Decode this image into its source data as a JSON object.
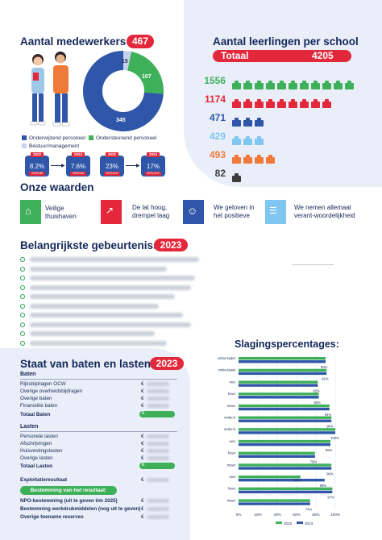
{
  "employees": {
    "title": "Aantal medewerkers",
    "total": "467",
    "donut": [
      {
        "label": "Onderwijzend personeel",
        "value": 345,
        "color": "#2f56a8"
      },
      {
        "label": "Ondersteunend personeel",
        "value": 107,
        "color": "#3fb05a"
      },
      {
        "label": "Bestuur/management",
        "value": 15,
        "color": "#c7d3ec"
      }
    ],
    "donut_labels": {
      "teaching": "345",
      "support": "107",
      "management": "15"
    },
    "legend": {
      "teaching": "Onderwijzend personeel",
      "support": "Ondersteunend personeel",
      "management": "Bestuur/management"
    },
    "cards": [
      {
        "year": "2022",
        "value": "8.2%",
        "tag": "VERZUIM"
      },
      {
        "year": "2023",
        "value": "7.6%",
        "tag": "VERZUIM"
      },
      {
        "year": "2022",
        "value": "23%",
        "tag": "VERLOOP"
      },
      {
        "year": "2023",
        "value": "17%",
        "tag": "VERLOOP"
      }
    ]
  },
  "students": {
    "title": "Aantal leerlingen per school",
    "total_label": "Totaal",
    "total_value": "4205",
    "rows": [
      {
        "value": "1556",
        "color": "#3fb05a",
        "icons": 11
      },
      {
        "value": "1174",
        "color": "#e3283c",
        "icons": 9
      },
      {
        "value": "471",
        "color": "#2f56a8",
        "icons": 3
      },
      {
        "value": "429",
        "color": "#7fc6f0",
        "icons": 3
      },
      {
        "value": "493",
        "color": "#f07a3a",
        "icons": 4
      },
      {
        "value": "82",
        "color": "#3c3c3c",
        "icons": 1
      }
    ]
  },
  "values": {
    "title": "Onze waarden",
    "items": [
      {
        "label": "Veilige thuishaven",
        "color": "#3fb05a",
        "icon": "house-icon"
      },
      {
        "label": "De lat hoog, drempel laag",
        "color": "#e3283c",
        "icon": "chart-growth-icon"
      },
      {
        "label": "We geloven in het positieve",
        "color": "#2f56a8",
        "icon": "smiley-icon"
      },
      {
        "label": "We nemen allemaal verant-woordelijkheid",
        "color": "#7fc6f0",
        "icon": "hands-icon"
      }
    ]
  },
  "events": {
    "title": "Belangrijkste gebeurtenissen",
    "year": "2023"
  },
  "finance": {
    "title": "Staat van baten en lasten",
    "year": "2023",
    "baten_header": "Baten",
    "baten": [
      "Rijksbijdragen OCW",
      "Overige overheidsbijdragen",
      "Overige baten",
      "Financiële baten"
    ],
    "baten_total": "Totaal Baten",
    "lasten_header": "Lasten",
    "lasten": [
      "Personele lasten",
      "Afschrijvingen",
      "Huisvestingslasten",
      "Overige lasten"
    ],
    "lasten_total": "Totaal Lasten",
    "result": "Exploitatieresultaat",
    "result_button": "Bestemming van het resultaat:",
    "dest": [
      "NPO-bestemming (uit te geven t/m 2025)",
      "Bestemming werkdrukmiddelen (nog uit te geven)",
      "Overige toename reserves"
    ],
    "currency": "€"
  },
  "pass_rates": {
    "title": "Slagingspercentages:",
    "legend_2022": "2022",
    "legend_2023": "2023",
    "colors": {
      "2022": "#3fb05a",
      "2023": "#2f56a8"
    }
  },
  "chart_data": {
    "type": "bar",
    "orientation": "horizontal",
    "title": "Slagingspercentages:",
    "categories": [
      "vmbo-kader",
      "vmbo-basis",
      "vwo",
      "havo",
      "mavo",
      "vmbo-k",
      "vmbo-b",
      "vwo",
      "havo",
      "mavo",
      "vwo",
      "havo",
      "mavo"
    ],
    "series": [
      {
        "name": "2022",
        "values": [
          null,
          null,
          null,
          null,
          null,
          null,
          null,
          null,
          null,
          null,
          64,
          null,
          null
        ]
      },
      {
        "name": "2023",
        "values": [
          90,
          91,
          82,
          83,
          94,
          96,
          100,
          95,
          79,
          96,
          89,
          97,
          74
        ]
      }
    ],
    "data_labels": [
      "90%",
      "91%",
      "82%",
      "83%",
      "94%",
      "96%",
      "100%",
      "95%",
      "79%",
      "96%",
      "89%",
      "97%",
      "74%"
    ],
    "extra_labels": [
      "64%"
    ],
    "xlim": [
      0,
      100
    ],
    "xticks": [
      "0%",
      "20%",
      "40%",
      "60%",
      "80%",
      "100%"
    ],
    "legend": "bottom"
  }
}
